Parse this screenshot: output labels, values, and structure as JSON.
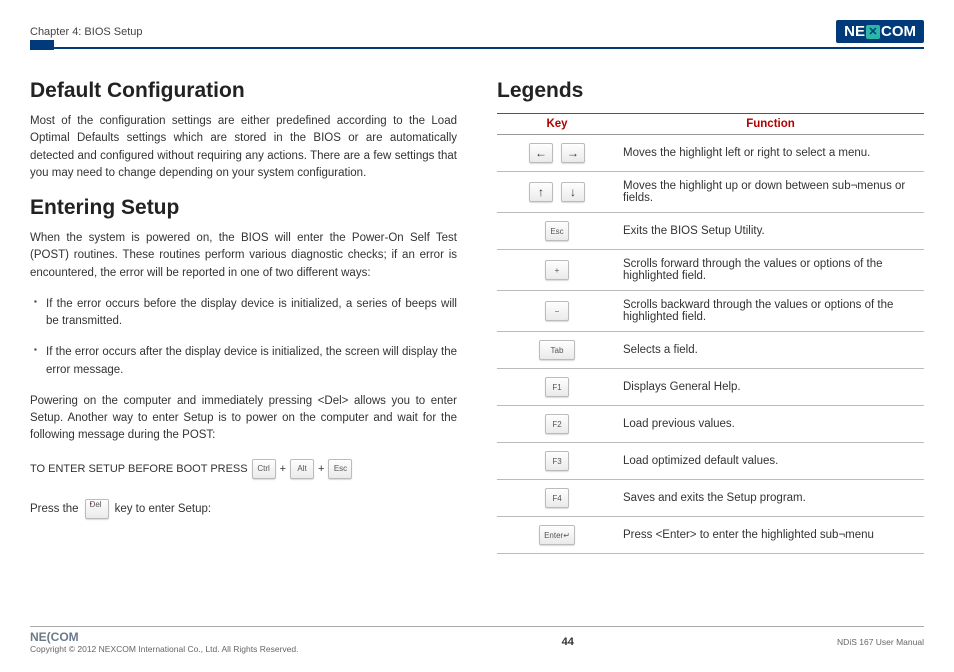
{
  "header": {
    "chapter": "Chapter 4: BIOS Setup",
    "logo_left": "NE",
    "logo_right": "COM"
  },
  "block_color": "#003a7a",
  "left": {
    "h1_default": "Default Configuration",
    "p_default": "Most of the configuration settings are either predefined according to the Load Optimal Defaults settings which are stored in the BIOS or are automatically detected and configured without requiring any actions. There are a few settings that you may need to change depending on your system configuration.",
    "h1_entering": "Entering Setup",
    "p_entering": "When the system is powered on, the BIOS will enter the Power-On Self Test (POST) routines. These routines perform various diagnostic checks; if an error is encountered, the error will be reported in one of two different ways:",
    "bullets": [
      "If the error occurs before the display device is initialized, a series of beeps will be transmitted.",
      "If the error occurs after the display device is initialized, the screen will display the error message."
    ],
    "p_powering": "Powering on the computer and immediately pressing <Del> allows you to enter Setup. Another way to enter Setup is to power on the computer and wait for the following message during the POST:",
    "enter_setup_label": "TO ENTER SETUP BEFORE BOOT PRESS",
    "keys": {
      "ctrl": "Ctrl",
      "alt": "Alt",
      "esc": "Esc",
      "del": "Del",
      "plus": "+"
    },
    "press_prefix": "Press the",
    "press_suffix": "key to enter Setup:"
  },
  "right": {
    "h1_legends": "Legends",
    "table": {
      "head_key": "Key",
      "head_fn": "Function",
      "header_color": "#b00000",
      "rows": [
        {
          "keys": [
            "←",
            "→"
          ],
          "fn": "Moves the highlight left or right to select a menu."
        },
        {
          "keys": [
            "↑",
            "↓"
          ],
          "fn": "Moves the highlight up or down between sub¬menus or fields."
        },
        {
          "keys": [
            "Esc"
          ],
          "fn": "Exits the BIOS Setup Utility."
        },
        {
          "keys": [
            "+"
          ],
          "fn": "Scrolls forward through the values or options of the highlighted field."
        },
        {
          "keys": [
            "−"
          ],
          "fn": "Scrolls backward through the values or options of the highlighted field."
        },
        {
          "keys": [
            "Tab"
          ],
          "wide": true,
          "fn": "Selects a field."
        },
        {
          "keys": [
            "F1"
          ],
          "fn": "Displays General Help."
        },
        {
          "keys": [
            "F2"
          ],
          "fn": "Load previous values."
        },
        {
          "keys": [
            "F3"
          ],
          "fn": "Load optimized default values."
        },
        {
          "keys": [
            "F4"
          ],
          "fn": "Saves and exits the Setup program."
        },
        {
          "keys": [
            "Enter↵"
          ],
          "wide": true,
          "fn": "Press <Enter> to enter the highlighted sub¬menu"
        }
      ]
    }
  },
  "footer": {
    "logo": "NE(COM",
    "copyright": "Copyright © 2012 NEXCOM International Co., Ltd. All Rights Reserved.",
    "page": "44",
    "manual": "NDiS 167 User Manual"
  }
}
